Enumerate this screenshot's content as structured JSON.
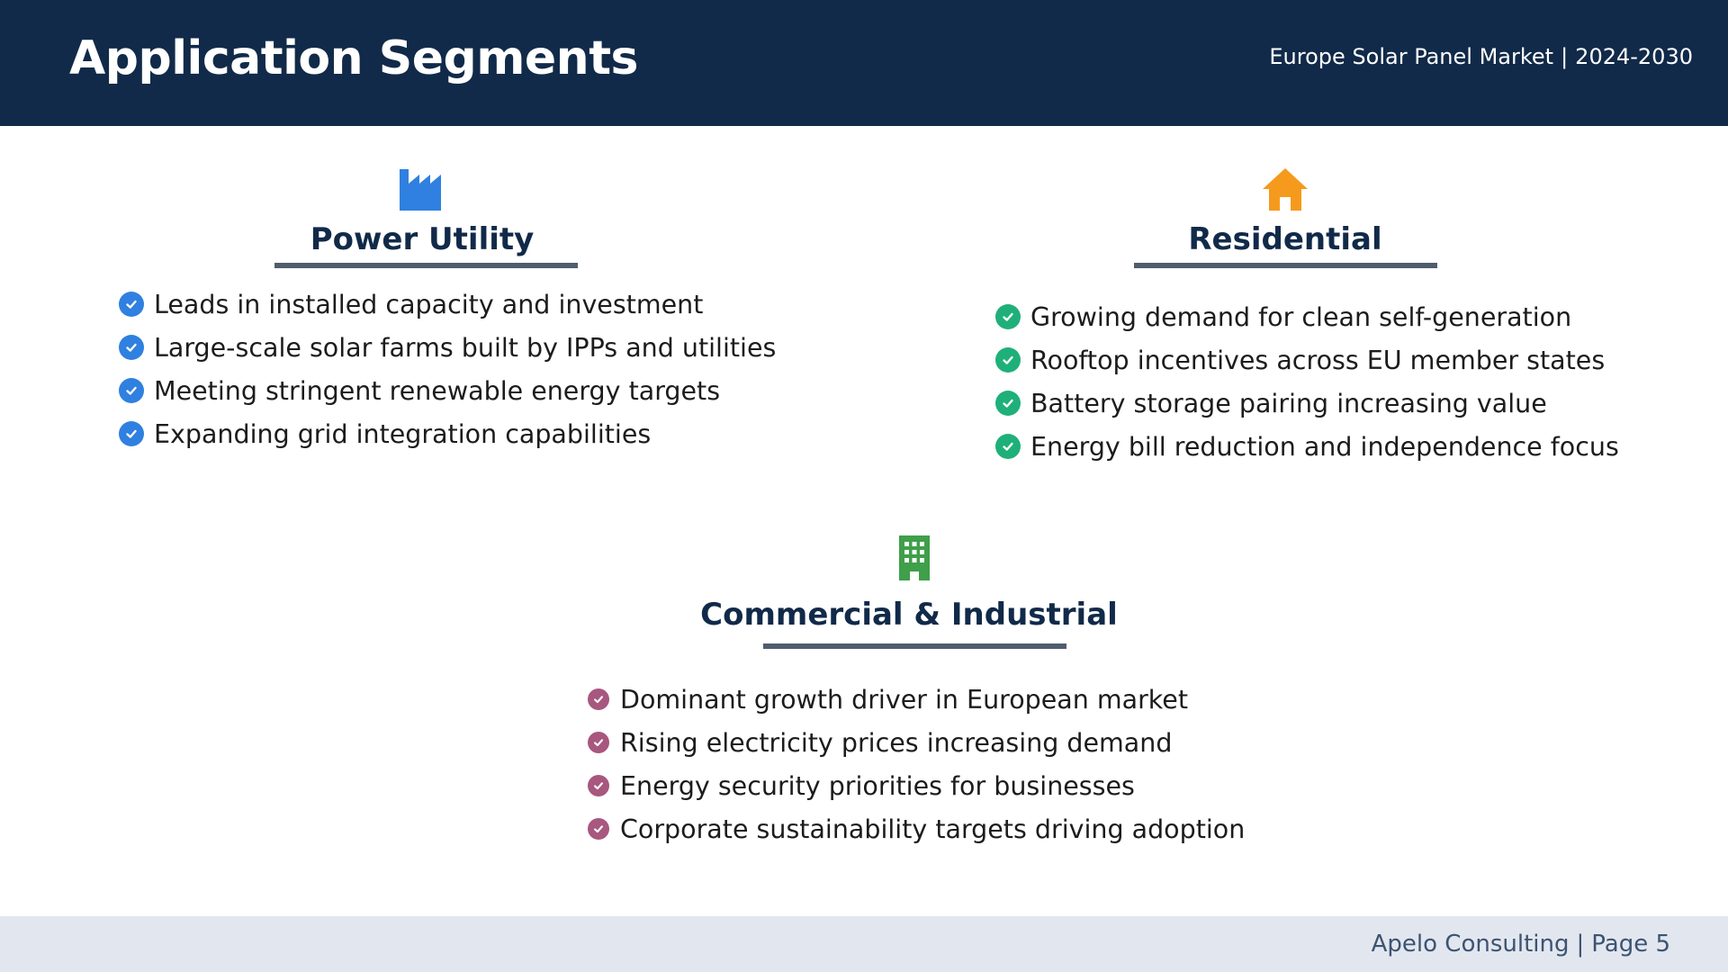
{
  "header": {
    "title": "Application Segments",
    "market": "Europe Solar Panel Market",
    "separator": "|",
    "period": "2024-2030"
  },
  "segments": [
    {
      "name": "Power Utility",
      "icon": "factory-icon",
      "icon_color": "#2f80e0",
      "check_color": "#2f80e0",
      "points": [
        "Leads in installed capacity and investment",
        "Large-scale solar farms built by IPPs and utilities",
        "Meeting stringent renewable energy targets",
        "Expanding grid integration capabilities"
      ]
    },
    {
      "name": "Residential",
      "icon": "house-icon",
      "icon_color": "#f59a1c",
      "check_color": "#1fb07a",
      "points": [
        "Growing demand for clean self-generation",
        "Rooftop incentives across EU member states",
        "Battery storage pairing increasing value",
        "Energy bill reduction and independence focus"
      ]
    },
    {
      "name": "Commercial & Industrial",
      "icon": "office-building-icon",
      "icon_color": "#3f9f4a",
      "check_color": "#a8577f",
      "points": [
        "Dominant growth driver in European market",
        "Rising electricity prices increasing demand",
        "Energy security priorities for businesses",
        "Corporate sustainability targets driving adoption"
      ]
    }
  ],
  "footer": {
    "company": "Apelo Consulting",
    "separator": "|",
    "page": "Page 5"
  }
}
